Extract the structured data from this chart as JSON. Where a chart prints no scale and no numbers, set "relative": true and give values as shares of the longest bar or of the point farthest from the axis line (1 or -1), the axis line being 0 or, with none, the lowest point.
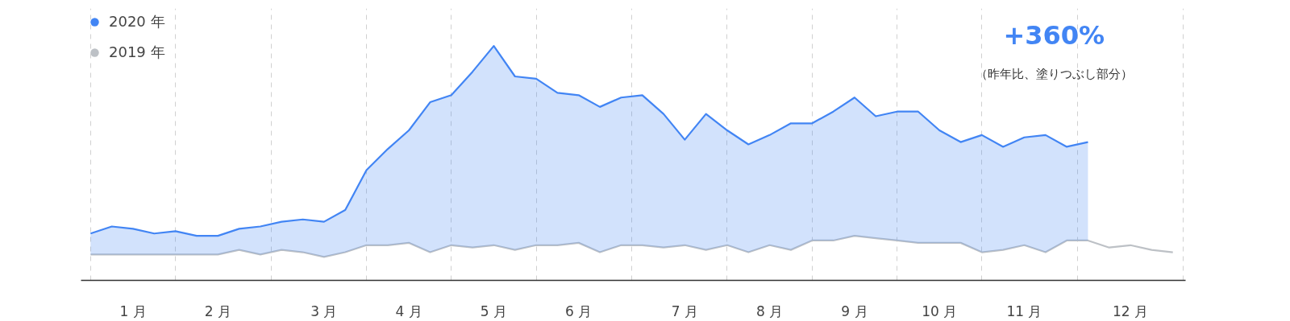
{
  "chart_data": {
    "type": "line",
    "relative": true,
    "legend": "top left",
    "grid": "x",
    "categories": [
      null,
      null,
      "1 月",
      null,
      null,
      null,
      "2 月",
      null,
      null,
      null,
      null,
      "3 月",
      null,
      null,
      null,
      "4 月",
      null,
      null,
      null,
      "5 月",
      null,
      null,
      null,
      "6 月",
      null,
      null,
      null,
      null,
      "7 月",
      null,
      null,
      null,
      "8 月",
      null,
      null,
      null,
      "9 月",
      null,
      null,
      null,
      "10 月",
      null,
      null,
      null,
      "11 月",
      null,
      null,
      null,
      null,
      "12 月",
      null,
      null
    ],
    "annotations": [
      "+360%",
      "（昨年比、塗りつぶし部分）"
    ],
    "series": [
      {
        "name": "2020 年",
        "type": "area",
        "color": "#4285f4",
        "values": [
          0.2,
          0.23,
          0.22,
          0.2,
          0.21,
          0.19,
          0.19,
          0.22,
          0.23,
          0.25,
          0.26,
          0.25,
          0.3,
          0.47,
          0.56,
          0.64,
          0.76,
          0.79,
          0.89,
          1.0,
          0.87,
          0.86,
          0.8,
          0.79,
          0.74,
          0.78,
          0.79,
          0.71,
          0.6,
          0.71,
          0.64,
          0.58,
          0.62,
          0.67,
          0.67,
          0.72,
          0.78,
          0.7,
          0.72,
          0.72,
          0.64,
          0.59,
          0.62,
          0.57,
          0.61,
          0.62,
          0.57,
          0.59,
          null,
          null,
          null,
          null
        ]
      },
      {
        "name": "2019 年",
        "color": "#bdc1c6",
        "values": [
          0.11,
          0.11,
          0.11,
          0.11,
          0.11,
          0.11,
          0.11,
          0.13,
          0.11,
          0.13,
          0.12,
          0.1,
          0.12,
          0.15,
          0.15,
          0.16,
          0.12,
          0.15,
          0.14,
          0.15,
          0.13,
          0.15,
          0.15,
          0.16,
          0.12,
          0.15,
          0.15,
          0.14,
          0.15,
          0.13,
          0.15,
          0.12,
          0.15,
          0.13,
          0.17,
          0.17,
          0.19,
          0.18,
          0.17,
          0.16,
          0.16,
          0.16,
          0.12,
          0.13,
          0.15,
          0.12,
          0.17,
          0.17,
          0.14,
          0.15,
          0.13,
          0.12
        ]
      }
    ]
  }
}
